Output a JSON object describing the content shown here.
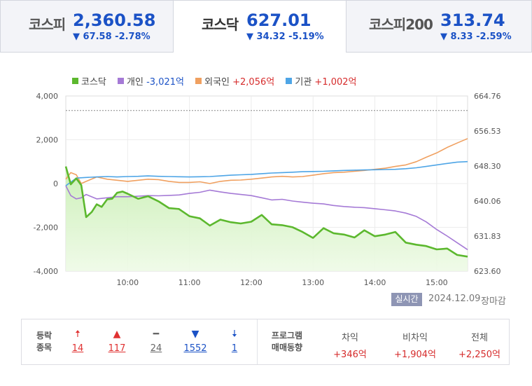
{
  "tabs": [
    {
      "name": "코스피",
      "value": "2,360.58",
      "change": "▼ 67.58 -2.78%"
    },
    {
      "name": "코스닥",
      "value": "627.01",
      "change": "▼ 34.32 -5.19%"
    },
    {
      "name": "코스피200",
      "value": "313.74",
      "change": "▼ 8.33 -2.59%"
    }
  ],
  "legend": [
    {
      "label": "코스닥",
      "amount": "",
      "color": "#5cb82e"
    },
    {
      "label": "개인",
      "amount": "-3,021억",
      "color": "#a57ad6"
    },
    {
      "label": "외국인",
      "amount": "+2,056억",
      "color": "#f0a060"
    },
    {
      "label": "기관",
      "amount": "+1,002억",
      "color": "#4ea5e6"
    }
  ],
  "chart_data": {
    "type": "line",
    "x_ticks": [
      "10:00",
      "11:00",
      "12:00",
      "13:00",
      "14:00",
      "15:00"
    ],
    "x_range": [
      9.0,
      15.5
    ],
    "y_left": {
      "range": [
        -4000,
        4000
      ],
      "ticks": [
        "4,000",
        "2,000",
        "0",
        "-2,000",
        "-4,000"
      ]
    },
    "y_right": {
      "range": [
        623.6,
        664.76
      ],
      "ticks": [
        "664.76",
        "656.53",
        "648.30",
        "640.06",
        "631.83",
        "623.60"
      ]
    },
    "reference_line_right": 661.35,
    "grid": true,
    "legend_position": "top-left",
    "series": [
      {
        "name": "코스닥",
        "axis": "right",
        "color": "#5cb82e",
        "fill": true,
        "x": [
          9.0,
          9.08,
          9.17,
          9.25,
          9.33,
          9.42,
          9.5,
          9.58,
          9.67,
          9.75,
          9.83,
          9.92,
          10.0,
          10.17,
          10.33,
          10.5,
          10.67,
          10.83,
          11.0,
          11.17,
          11.33,
          11.5,
          11.67,
          11.83,
          12.0,
          12.17,
          12.33,
          12.5,
          12.67,
          12.83,
          13.0,
          13.17,
          13.33,
          13.5,
          13.67,
          13.83,
          14.0,
          14.17,
          14.33,
          14.5,
          14.67,
          14.83,
          15.0,
          15.17,
          15.33,
          15.5
        ],
        "y": [
          648.2,
          644.0,
          645.4,
          643.8,
          636.3,
          637.5,
          639.3,
          638.7,
          640.5,
          640.6,
          642.0,
          642.3,
          641.8,
          640.6,
          641.2,
          640.0,
          638.4,
          638.2,
          636.5,
          636.0,
          634.3,
          635.7,
          635.1,
          634.8,
          635.2,
          636.8,
          634.6,
          634.4,
          633.9,
          632.8,
          631.4,
          633.7,
          632.5,
          632.2,
          631.5,
          633.2,
          631.8,
          632.2,
          632.8,
          630.3,
          629.8,
          629.5,
          628.7,
          628.9,
          627.4,
          627.0
        ]
      },
      {
        "name": "개인",
        "axis": "left",
        "color": "#a57ad6",
        "fill": false,
        "x": [
          9.0,
          9.08,
          9.17,
          9.25,
          9.33,
          9.5,
          9.67,
          9.83,
          10.0,
          10.17,
          10.33,
          10.5,
          10.67,
          10.83,
          11.0,
          11.17,
          11.33,
          11.5,
          11.67,
          11.83,
          12.0,
          12.17,
          12.33,
          12.5,
          12.67,
          12.83,
          13.0,
          13.17,
          13.33,
          13.5,
          13.67,
          13.83,
          14.0,
          14.17,
          14.33,
          14.5,
          14.67,
          14.83,
          15.0,
          15.17,
          15.33,
          15.5
        ],
        "y": [
          -100,
          -550,
          -700,
          -650,
          -500,
          -700,
          -650,
          -600,
          -600,
          -580,
          -550,
          -560,
          -540,
          -520,
          -450,
          -400,
          -300,
          -380,
          -450,
          -500,
          -550,
          -650,
          -750,
          -720,
          -800,
          -850,
          -900,
          -930,
          -1000,
          -1050,
          -1080,
          -1100,
          -1150,
          -1200,
          -1250,
          -1350,
          -1500,
          -1750,
          -2100,
          -2400,
          -2700,
          -3021
        ]
      },
      {
        "name": "외국인",
        "axis": "left",
        "color": "#f0a060",
        "fill": false,
        "x": [
          9.0,
          9.08,
          9.17,
          9.25,
          9.33,
          9.5,
          9.67,
          9.83,
          10.0,
          10.17,
          10.33,
          10.5,
          10.67,
          10.83,
          11.0,
          11.17,
          11.33,
          11.5,
          11.67,
          11.83,
          12.0,
          12.17,
          12.33,
          12.5,
          12.67,
          12.83,
          13.0,
          13.17,
          13.33,
          13.5,
          13.67,
          13.83,
          14.0,
          14.17,
          14.33,
          14.5,
          14.67,
          14.83,
          15.0,
          15.17,
          15.33,
          15.5
        ],
        "y": [
          200,
          500,
          400,
          0,
          100,
          300,
          200,
          150,
          100,
          150,
          200,
          180,
          100,
          50,
          50,
          80,
          0,
          100,
          150,
          160,
          200,
          250,
          300,
          330,
          300,
          320,
          380,
          450,
          500,
          520,
          560,
          600,
          650,
          700,
          780,
          850,
          1000,
          1200,
          1400,
          1650,
          1850,
          2056
        ]
      },
      {
        "name": "기관",
        "axis": "left",
        "color": "#4ea5e6",
        "fill": false,
        "x": [
          9.0,
          9.17,
          9.33,
          9.5,
          9.67,
          9.83,
          10.0,
          10.17,
          10.33,
          10.5,
          10.67,
          10.83,
          11.0,
          11.17,
          11.33,
          11.5,
          11.67,
          11.83,
          12.0,
          12.17,
          12.33,
          12.5,
          12.67,
          12.83,
          13.0,
          13.17,
          13.33,
          13.5,
          13.67,
          13.83,
          14.0,
          14.17,
          14.33,
          14.5,
          14.67,
          14.83,
          15.0,
          15.17,
          15.33,
          15.5
        ],
        "y": [
          -100,
          250,
          280,
          300,
          320,
          300,
          320,
          330,
          350,
          330,
          320,
          310,
          300,
          310,
          320,
          350,
          380,
          400,
          420,
          450,
          480,
          500,
          520,
          540,
          550,
          560,
          580,
          600,
          610,
          620,
          630,
          640,
          650,
          680,
          720,
          780,
          850,
          920,
          980,
          1002
        ]
      }
    ]
  },
  "badges": {
    "realtime": "실시간",
    "date": "2024.12.09",
    "status": "장마감"
  },
  "breadth": {
    "title_line1": "등락",
    "title_line2": "종목",
    "items": [
      {
        "icon": "🠅",
        "count": "14",
        "tone": "up"
      },
      {
        "icon": "▲",
        "count": "117",
        "tone": "up"
      },
      {
        "icon": "━",
        "count": "24",
        "tone": "flat"
      },
      {
        "icon": "▼",
        "count": "1552",
        "tone": "dn"
      },
      {
        "icon": "🠇",
        "count": "1",
        "tone": "dn"
      }
    ]
  },
  "program": {
    "title_line1": "프로그램",
    "title_line2": "매매동향",
    "cols": [
      {
        "label": "차익",
        "value": "+346억"
      },
      {
        "label": "비차익",
        "value": "+1,904억"
      },
      {
        "label": "전체",
        "value": "+2,250억"
      }
    ]
  }
}
